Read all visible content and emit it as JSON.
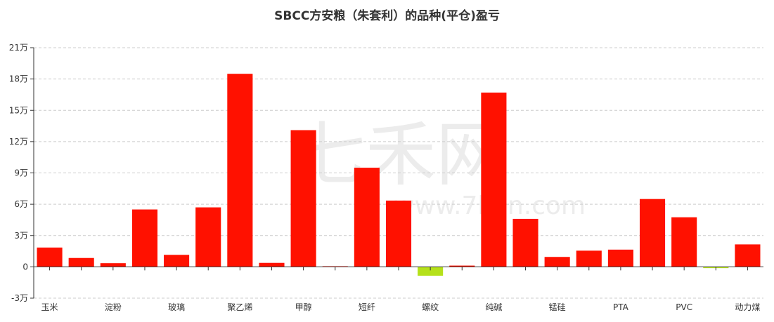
{
  "chart_data": {
    "type": "bar",
    "title": "SBCC方安粮（朱套利）的品种(平仓)盈亏",
    "xlabel": "",
    "ylabel": "",
    "ylim": [
      -30000,
      210000
    ],
    "y_ticks": [
      -30000,
      0,
      30000,
      60000,
      90000,
      120000,
      150000,
      180000,
      210000
    ],
    "y_tick_labels": [
      "-3万",
      "0",
      "3万",
      "6万",
      "9万",
      "12万",
      "15万",
      "18万",
      "21万"
    ],
    "grid": true,
    "positive_color": "#ff1100",
    "negative_color": "#b5e11a",
    "categories": [
      "玉米",
      "",
      "淀粉",
      "",
      "玻璃",
      "",
      "聚乙烯",
      "",
      "甲醇",
      "",
      "短纤",
      "",
      "螺纹",
      "",
      "纯碱",
      "",
      "锰硅",
      "",
      "PTA",
      "",
      "PVC",
      "",
      "动力煤"
    ],
    "values": [
      18500,
      8500,
      3500,
      55000,
      11500,
      57000,
      185000,
      3800,
      131000,
      600,
      95000,
      63500,
      -8500,
      1200,
      167000,
      46000,
      9500,
      15500,
      16500,
      65000,
      47500,
      -1200,
      21500
    ]
  },
  "watermark": {
    "text": "七禾网",
    "url": "www.7hcn.com"
  }
}
